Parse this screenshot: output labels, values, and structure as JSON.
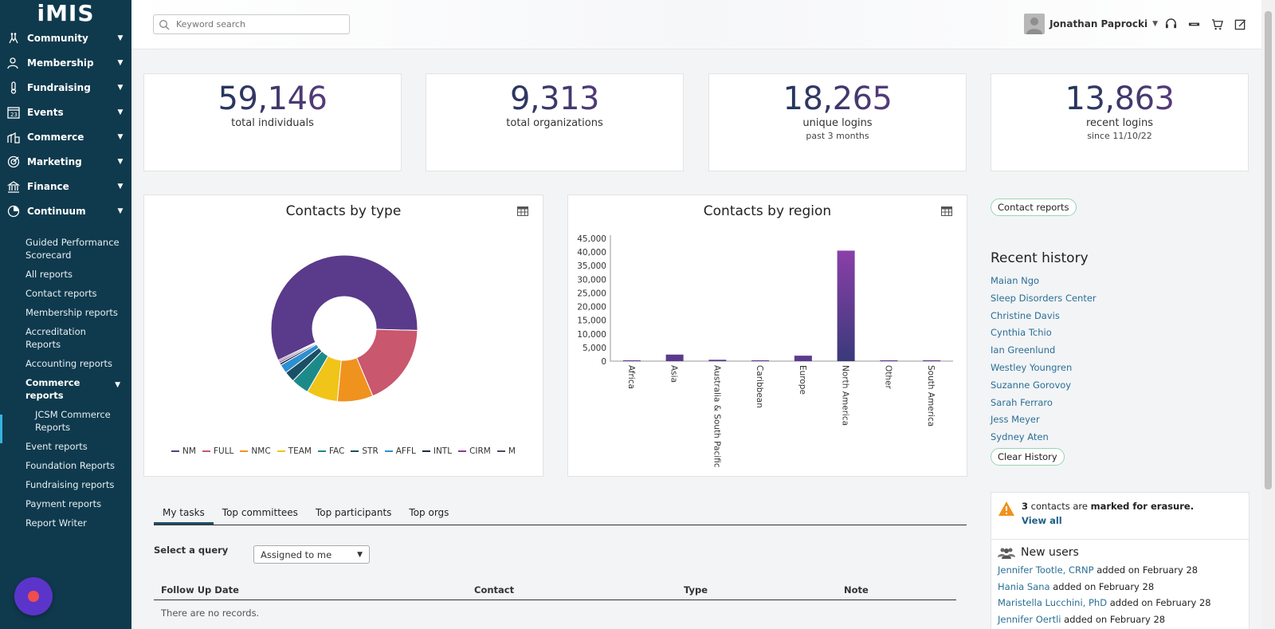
{
  "app": {
    "logo": "iMIS"
  },
  "sidebar": {
    "items": [
      {
        "label": "Community",
        "icon": "community-icon"
      },
      {
        "label": "Membership",
        "icon": "membership-icon"
      },
      {
        "label": "Fundraising",
        "icon": "fundraising-icon"
      },
      {
        "label": "Events",
        "icon": "events-icon"
      },
      {
        "label": "Commerce",
        "icon": "commerce-icon"
      },
      {
        "label": "Marketing",
        "icon": "marketing-icon"
      },
      {
        "label": "Finance",
        "icon": "finance-icon"
      },
      {
        "label": "Continuum",
        "icon": "continuum-icon"
      }
    ],
    "submenu": [
      "Guided Performance Scorecard",
      "All reports",
      "Contact reports",
      "Membership reports",
      "Accreditation Reports",
      "Accounting reports"
    ],
    "active_submenu": "Commerce reports",
    "subsub": [
      "JCSM Commerce Reports"
    ],
    "submenu_after": [
      "Event reports",
      "Foundation Reports",
      "Fundraising reports",
      "Payment reports",
      "Report Writer"
    ]
  },
  "header": {
    "search_placeholder": "Keyword search",
    "user_name": "Jonathan Paprocki"
  },
  "stats": [
    {
      "value": "59,146",
      "label": "total individuals",
      "sub": ""
    },
    {
      "value": "9,313",
      "label": "total organizations",
      "sub": ""
    },
    {
      "value": "18,265",
      "label": "unique logins",
      "sub": "past 3 months"
    },
    {
      "value": "13,863",
      "label": "recent logins",
      "sub": "since 11/10/22"
    }
  ],
  "chart_data": [
    {
      "type": "pie",
      "title": "Contacts by type",
      "categories": [
        "NM",
        "FULL",
        "NMC",
        "TEAM",
        "FAC",
        "STR",
        "AFFL",
        "INTL",
        "CIRM",
        "M"
      ],
      "values": [
        58.5,
        18.5,
        8.0,
        7.0,
        4.0,
        2.4,
        2.0,
        0.5,
        0.4,
        0.3
      ],
      "colors": [
        "#5a3a8a",
        "#c9576d",
        "#f0921e",
        "#f0c419",
        "#1d8a8a",
        "#1a4f66",
        "#2c8fcf",
        "#1a2a44",
        "#8a3a8a",
        "#4a4a6a"
      ],
      "legend": "bottom"
    },
    {
      "type": "bar",
      "title": "Contacts by region",
      "categories": [
        "Africa",
        "Asia",
        "Australia & South Pacific",
        "Caribbean",
        "Europe",
        "North America",
        "Other",
        "South America"
      ],
      "values": [
        200,
        2400,
        500,
        50,
        2000,
        40500,
        100,
        300
      ],
      "ylim": [
        0,
        45000
      ],
      "yticks": [
        "45,000",
        "40,000",
        "35,000",
        "30,000",
        "25,000",
        "20,000",
        "15,000",
        "10,000",
        "5,000",
        "0"
      ],
      "yticks_values": [
        45000,
        40000,
        35000,
        30000,
        25000,
        20000,
        15000,
        10000,
        5000,
        0
      ],
      "xlabel": "",
      "ylabel": ""
    }
  ],
  "right": {
    "contact_reports": "Contact reports",
    "recent_history_title": "Recent history",
    "recent_history": [
      "Maian Ngo",
      "Sleep Disorders Center",
      "Christine Davis",
      "Cynthia Tchio",
      "Ian Greenlund",
      "Westley Youngren",
      "Suzanne Gorovoy",
      "Sarah Ferraro",
      "Jess Meyer",
      "Sydney Aten"
    ],
    "clear_history": "Clear History",
    "erasure_count": "3",
    "erasure_mid": " contacts are ",
    "erasure_bold": "marked for erasure.",
    "view_all": "View all",
    "new_users_title": "New users",
    "new_users": [
      {
        "name": "Jennifer Tootle, CRNP",
        "text": " added on February 28"
      },
      {
        "name": "Hania Sana",
        "text": " added on February 28"
      },
      {
        "name": "Maristella Lucchini, PhD",
        "text": " added on February 28"
      },
      {
        "name": "Jennifer Oertli",
        "text": " added on February 28"
      }
    ]
  },
  "tabs": [
    "My tasks",
    "Top committees",
    "Top participants",
    "Top orgs"
  ],
  "query": {
    "label": "Select a query",
    "selected": "Assigned to me"
  },
  "table": {
    "columns": [
      "Follow Up Date",
      "Contact",
      "Type",
      "Note"
    ],
    "empty": "There are no records."
  },
  "colors": {
    "sidebar": "#0f3a4d",
    "accent": "#36b3e0",
    "link": "#2a6f96"
  }
}
